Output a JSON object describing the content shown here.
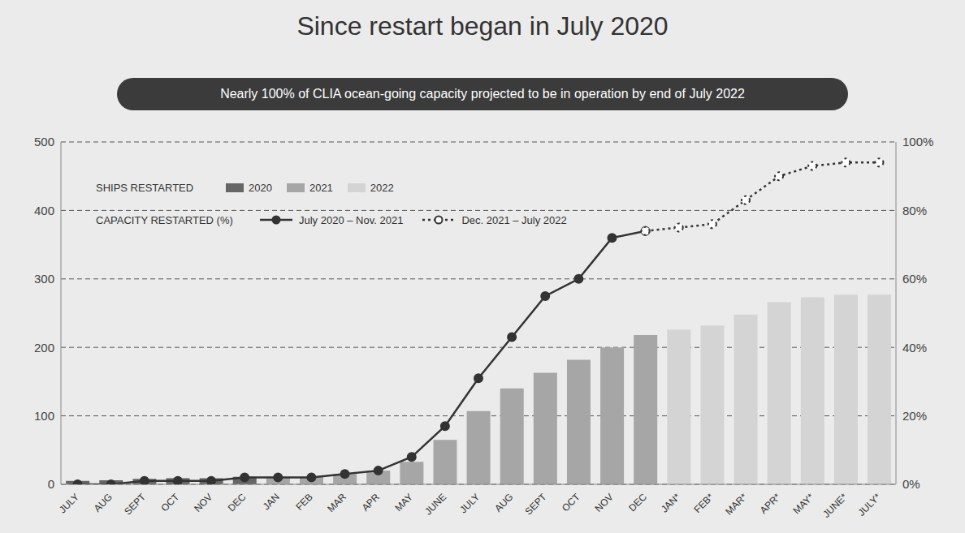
{
  "chart_data": {
    "type": "bar",
    "title": "Since restart began in July 2020",
    "subtitle": "Nearly 100% of CLIA ocean-going capacity projected to be in operation by end of July 2022",
    "bar_legend_title": "SHIPS RESTARTED",
    "line_legend_title": "CAPACITY RESTARTED (%)",
    "categories": [
      "JULY",
      "AUG",
      "SEPT",
      "OCT",
      "NOV",
      "DEC",
      "JAN",
      "FEB",
      "MAR",
      "APR",
      "MAY",
      "JUNE",
      "JULY",
      "AUG",
      "SEPT",
      "OCT",
      "NOV",
      "DEC",
      "JAN*",
      "FEB*",
      "MAR*",
      "APR*",
      "MAY*",
      "JUNE*",
      "JULY*"
    ],
    "series": [
      {
        "name": "2020",
        "type": "bar",
        "color": "#666666",
        "values": [
          5,
          6,
          8,
          9,
          9,
          11,
          null,
          null,
          null,
          null,
          null,
          null,
          null,
          null,
          null,
          null,
          null,
          null,
          null,
          null,
          null,
          null,
          null,
          null,
          null
        ]
      },
      {
        "name": "2021",
        "type": "bar",
        "color": "#a6a6a6",
        "values": [
          null,
          null,
          null,
          null,
          null,
          null,
          11,
          11,
          15,
          20,
          33,
          65,
          107,
          140,
          163,
          182,
          200,
          218,
          null,
          null,
          null,
          null,
          null,
          null,
          null
        ]
      },
      {
        "name": "2022",
        "type": "bar",
        "color": "#d4d4d4",
        "values": [
          null,
          null,
          null,
          null,
          null,
          null,
          null,
          null,
          null,
          null,
          null,
          null,
          null,
          null,
          null,
          null,
          null,
          null,
          226,
          232,
          248,
          266,
          273,
          277,
          277
        ]
      },
      {
        "name": "July 2020 – Nov. 2021",
        "type": "line",
        "axis": "y2",
        "color": "#333333",
        "marker": "circle",
        "line_style": "solid",
        "values": [
          0,
          0,
          1,
          1,
          1,
          2,
          2,
          2,
          3,
          4,
          8,
          17,
          31,
          43,
          55,
          60,
          72,
          74,
          null,
          null,
          null,
          null,
          null,
          null,
          null
        ]
      },
      {
        "name": "Dec. 2021 – July 2022",
        "type": "line",
        "axis": "y2",
        "color": "#333333",
        "marker": "open_circle",
        "line_style": "dotted",
        "values": [
          null,
          null,
          null,
          null,
          null,
          null,
          null,
          null,
          null,
          null,
          null,
          null,
          null,
          null,
          null,
          null,
          null,
          74,
          75,
          76,
          83,
          90,
          93,
          94,
          94
        ]
      }
    ],
    "ylim": [
      0,
      500
    ],
    "yticks": [
      0,
      100,
      200,
      300,
      400,
      500
    ],
    "y2lim": [
      0,
      100
    ],
    "y2ticks": [
      {
        "value": 0,
        "label": "0%"
      },
      {
        "value": 20,
        "label": "20%"
      },
      {
        "value": 40,
        "label": "40%"
      },
      {
        "value": 60,
        "label": "60%"
      },
      {
        "value": 80,
        "label": "80%"
      },
      {
        "value": 100,
        "label": "100%"
      }
    ],
    "grid": true,
    "stacked": true,
    "legend": "upper left"
  }
}
